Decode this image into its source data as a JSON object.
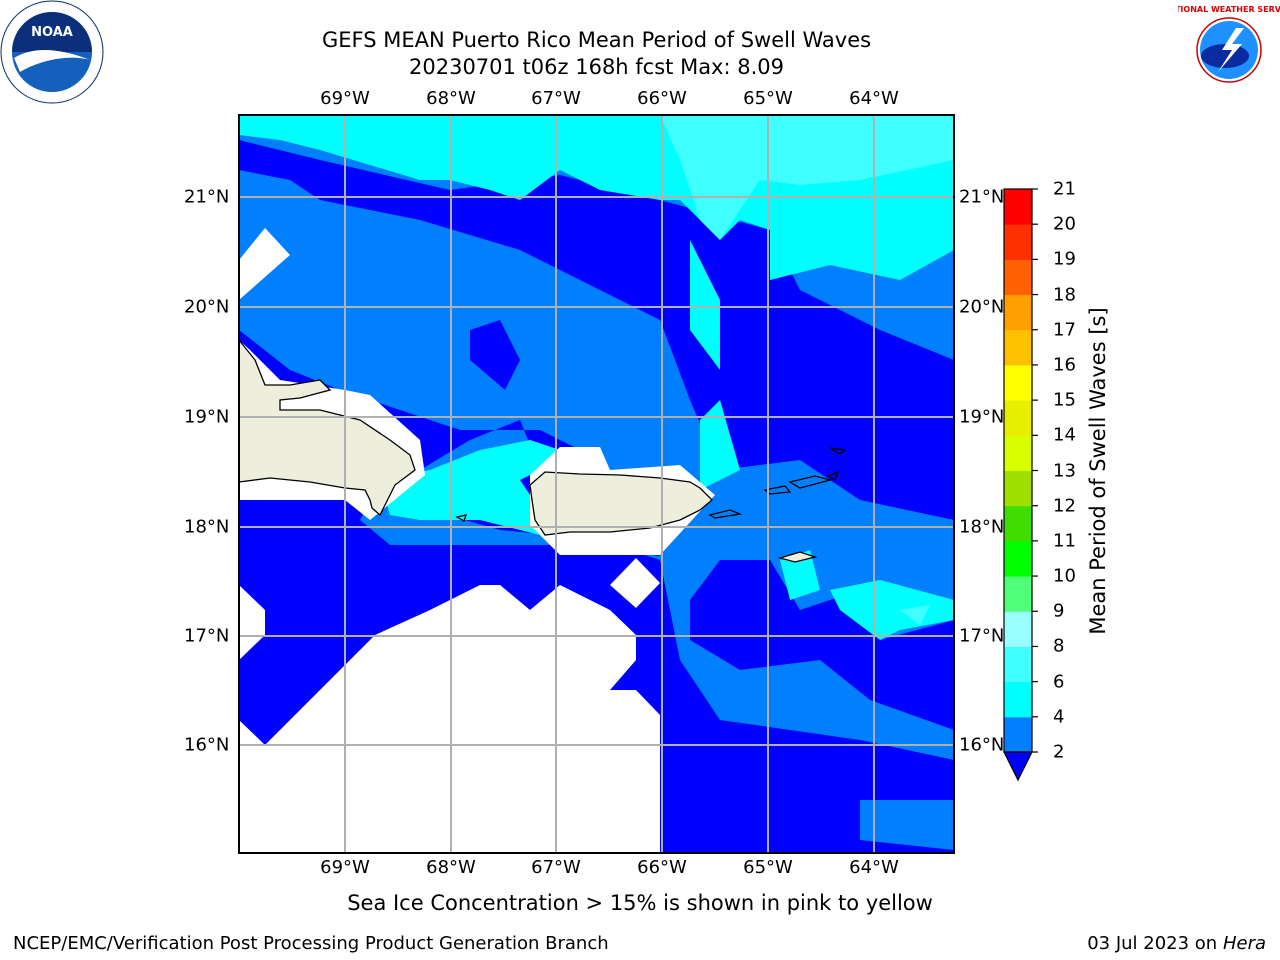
{
  "header": {
    "title_line1": "GEFS MEAN Puerto Rico Mean Period of Swell Waves",
    "title_line2": "20230701 t06z 168h fcst   Max: 8.09"
  },
  "map": {
    "lon_labels": [
      "69°W",
      "68°W",
      "67°W",
      "66°W",
      "65°W",
      "64°W"
    ],
    "lat_labels": [
      "21°N",
      "20°N",
      "19°N",
      "18°N",
      "17°N",
      "16°N"
    ],
    "land_color": "#eeeedd",
    "masked_color": "#ffffff"
  },
  "colorbar": {
    "label": "Mean Period of Swell Waves [s]",
    "ticks": [
      "2",
      "4",
      "6",
      "8",
      "9",
      "10",
      "11",
      "12",
      "13",
      "14",
      "15",
      "16",
      "17",
      "18",
      "19",
      "20",
      "21"
    ],
    "colors": [
      "#0000ff",
      "#0080ff",
      "#00ffff",
      "#40ffff",
      "#99ffff",
      "#50ff7a",
      "#00ff00",
      "#40dd00",
      "#a0e000",
      "#d8ff00",
      "#e8ee00",
      "#ffff00",
      "#ffc000",
      "#ffa000",
      "#ff6000",
      "#ff3000",
      "#ff0000"
    ]
  },
  "note": "Sea Ice Concentration > 15% is shown in pink to yellow",
  "footer": {
    "left": "NCEP/EMC/Verification Post Processing Product Generation Branch",
    "right_date": "03 Jul 2023 on",
    "right_host": "Hera"
  },
  "logos": {
    "noaa_text": "NOAA",
    "nws_text": "NATIONAL WEATHER SERVICE"
  }
}
